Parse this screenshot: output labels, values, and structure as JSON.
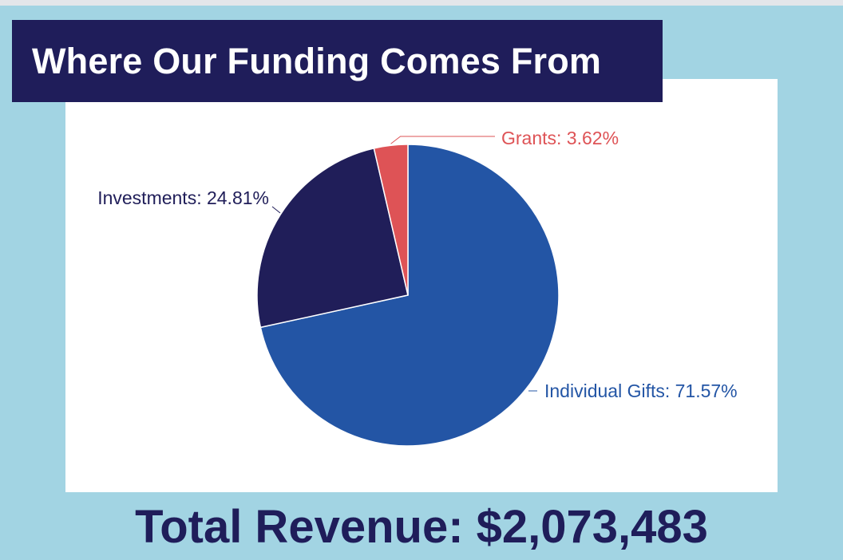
{
  "title": "Where Our Funding Comes From",
  "total": "Total Revenue: $2,073,483",
  "colors": {
    "background": "#a2d4e3",
    "banner": "#1f1d5a",
    "individual_gifts": "#2355a5",
    "investments": "#201e59",
    "grants": "#de5356"
  },
  "chart_data": {
    "type": "pie",
    "title": "Where Our Funding Comes From",
    "slices": [
      {
        "label": "Individual Gifts",
        "value": 71.57,
        "display": "Individual Gifts: 71.57%",
        "color": "#2355a5"
      },
      {
        "label": "Investments",
        "value": 24.81,
        "display": "Investments: 24.81%",
        "color": "#201e59"
      },
      {
        "label": "Grants",
        "value": 3.62,
        "display": "Grants: 3.62%",
        "color": "#de5356"
      }
    ],
    "start_angle": "12 o'clock",
    "direction": "clockwise",
    "legend": "none"
  }
}
